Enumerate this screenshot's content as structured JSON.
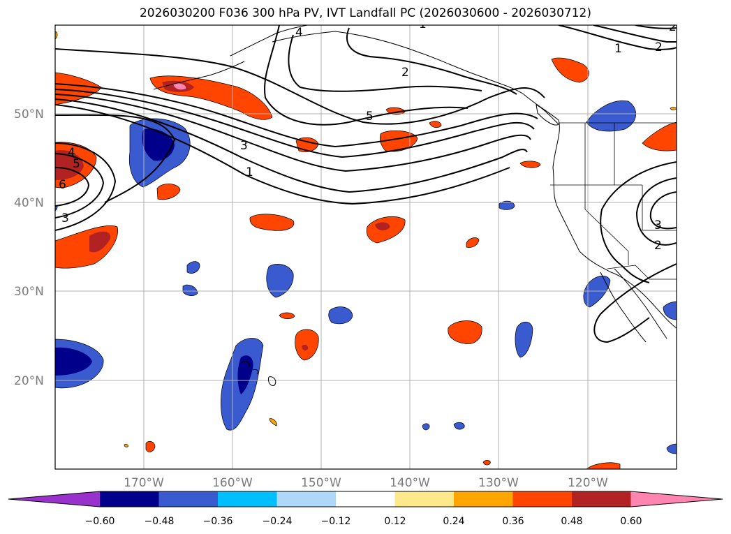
{
  "title": "2026030200 F036 300 hPa PV, IVT Landfall PC (2026030600 - 2026030712)",
  "map": {
    "lat_labels": [
      "50°N",
      "40°N",
      "30°N",
      "20°N"
    ],
    "lon_labels": [
      "170°W",
      "160°W",
      "150°W",
      "140°W",
      "130°W",
      "120°W"
    ],
    "contour_labels": [
      "1",
      "2",
      "2",
      "5",
      "3",
      "1",
      "4",
      "5",
      "6",
      "3",
      "3",
      "2",
      "4",
      "1",
      "2"
    ]
  },
  "colorbar": {
    "labels": [
      "−0.60",
      "−0.48",
      "−0.36",
      "−0.24",
      "−0.12",
      "0.12",
      "0.24",
      "0.36",
      "0.48",
      "0.60"
    ],
    "colors": [
      "#9932cc",
      "#00008b",
      "#3a5bd0",
      "#00bfff",
      "#add8f8",
      "#ffffff",
      "#fde98c",
      "#ffa500",
      "#ff4500",
      "#b22222",
      "#ff85b0"
    ]
  },
  "palette": {
    "grid": "#b0b0b0",
    "coast": "#000000",
    "label_gray": "#7a7a7a"
  }
}
